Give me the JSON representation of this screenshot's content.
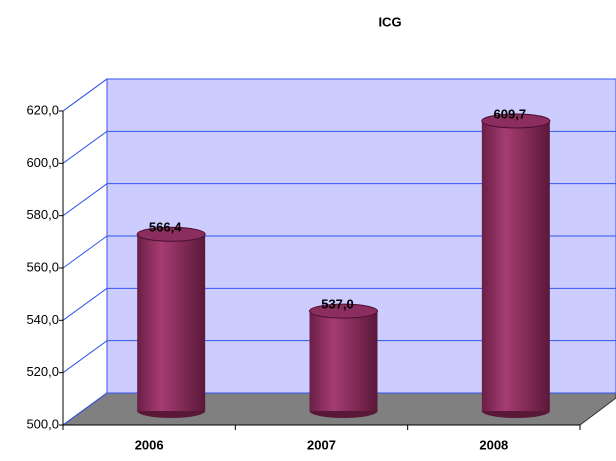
{
  "chart_data": {
    "type": "bar",
    "title": "ICG",
    "categories": [
      "2006",
      "2007",
      "2008"
    ],
    "values": [
      566.4,
      537.0,
      609.7
    ],
    "value_labels": [
      "566,4",
      "537,0",
      "609,7"
    ],
    "color": "#8b2d5e",
    "ylim": [
      500,
      620
    ],
    "yticks": [
      {
        "value": 500,
        "label": "500,0"
      },
      {
        "value": 520,
        "label": "520,0"
      },
      {
        "value": 540,
        "label": "540,0"
      },
      {
        "value": 560,
        "label": "560,0"
      },
      {
        "value": 580,
        "label": "580,0"
      },
      {
        "value": 600,
        "label": "600,0"
      },
      {
        "value": 620,
        "label": "620,0"
      }
    ],
    "grid": true
  }
}
